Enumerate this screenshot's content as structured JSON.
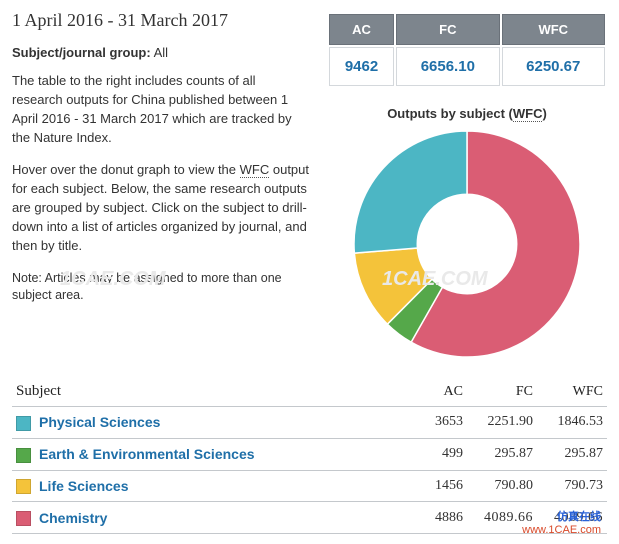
{
  "header": {
    "date_range": "1 April 2016 - 31 March 2017",
    "subject_label": "Subject/journal group:",
    "subject_value": "All",
    "para1": "The table to the right includes counts of all research outputs for China published between 1 April 2016 - 31 March 2017 which are tracked by the Nature Index.",
    "para2_a": "Hover over the donut graph to view the ",
    "para2_abbr": "WFC",
    "para2_b": " output for each subject. Below, the same research outputs are grouped by subject. Click on the subject to drill-down into a list of articles organized by journal, and then by title.",
    "note": "Note: Articles may be assigned to more than one subject area."
  },
  "metrics": {
    "headers": {
      "ac": "AC",
      "fc": "FC",
      "wfc": "WFC"
    },
    "values": {
      "ac": "9462",
      "fc": "6656.10",
      "wfc": "6250.67"
    }
  },
  "chart": {
    "title_a": "Outputs by subject (",
    "title_abbr": "WFC",
    "title_b": ")",
    "type": "donut",
    "size": 230,
    "inner_ratio": 0.44,
    "background": "#ffffff",
    "slices": [
      {
        "label": "Chemistry",
        "value": 4089.66,
        "color": "#da5d74"
      },
      {
        "label": "Earth & Environmental Sciences",
        "value": 295.87,
        "color": "#55a84a"
      },
      {
        "label": "Life Sciences",
        "value": 790.73,
        "color": "#f4c33a"
      },
      {
        "label": "Physical Sciences",
        "value": 1846.53,
        "color": "#4cb6c4"
      }
    ]
  },
  "subject_table": {
    "headers": {
      "subject": "Subject",
      "ac": "AC",
      "fc": "FC",
      "wfc": "WFC"
    },
    "rows": [
      {
        "swatch": "#4cb6c4",
        "label": "Physical Sciences",
        "ac": "3653",
        "fc": "2251.90",
        "wfc": "1846.53"
      },
      {
        "swatch": "#55a84a",
        "label": "Earth & Environmental Sciences",
        "ac": "499",
        "fc": "295.87",
        "wfc": "295.87"
      },
      {
        "swatch": "#f4c33a",
        "label": "Life Sciences",
        "ac": "1456",
        "fc": "790.80",
        "wfc": "790.73"
      },
      {
        "swatch": "#da5d74",
        "label": "Chemistry",
        "ac": "4886",
        "fc": "4089.66",
        "wfc": "4089.66",
        "obscured": true
      }
    ]
  },
  "watermarks": {
    "w1": "1CAE.COM",
    "w2": "1CAE.COM",
    "footer_cn": "仿真在线",
    "footer_url": "www.1CAE.com"
  }
}
